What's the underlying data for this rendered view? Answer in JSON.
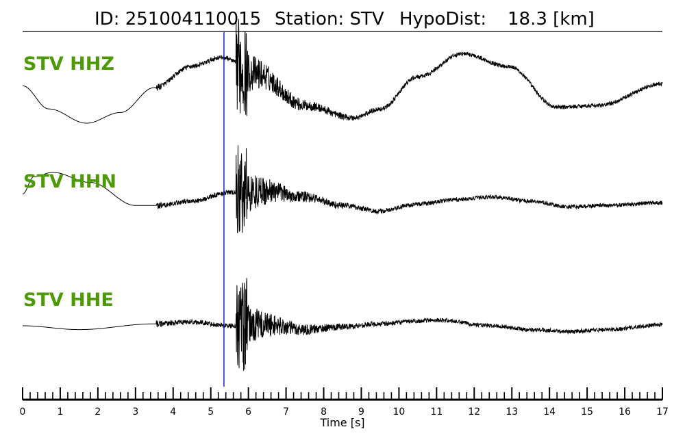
{
  "title": {
    "id_text": "ID: 251004110015",
    "station_text": "Station: STV",
    "hypodist_label": "HypoDist:",
    "hypodist_value": "18.3 [km]"
  },
  "chart_data": {
    "type": "line",
    "xlabel": "Time [s]",
    "xlim": [
      0,
      17
    ],
    "x_ticks": [
      "0",
      "1",
      "2",
      "3",
      "4",
      "5",
      "6",
      "7",
      "8",
      "9",
      "10",
      "11",
      "12",
      "13",
      "14",
      "15",
      "16",
      "17"
    ],
    "minor_tick_step": 0.2,
    "pick_time": 5.35,
    "colors": {
      "label": "#4d9a06",
      "trace": "#000000",
      "pick": "#1f1fd6",
      "axis": "#000000"
    },
    "series": [
      {
        "name": "STV HHZ",
        "onset_time": 3.55,
        "s_time": 5.72,
        "baseline": {
          "x": [
            0,
            0.7,
            1.7,
            2.6,
            3.5,
            4.5,
            5.3,
            6.2,
            7.5,
            8.8,
            9.5,
            10.5,
            11.7,
            12.9,
            14.2,
            15.3,
            17
          ],
          "y": [
            0.05,
            -0.6,
            -1.0,
            -0.7,
            0.0,
            0.6,
            0.85,
            0.4,
            -0.5,
            -0.85,
            -0.6,
            0.3,
            0.95,
            0.6,
            -0.55,
            -0.5,
            0.1
          ]
        }
      },
      {
        "name": "STV HHN",
        "onset_time": 3.55,
        "s_time": 5.72,
        "baseline": {
          "x": [
            0,
            0.3,
            0.8,
            1.8,
            3.0,
            3.6,
            4.5,
            5.5,
            6.5,
            7.5,
            8.5,
            9.5,
            10.5,
            11.5,
            12.5,
            13.5,
            14.5,
            15.5,
            17
          ],
          "y": [
            0.3,
            0.9,
            1.05,
            0.7,
            -0.1,
            -0.1,
            0.05,
            0.35,
            0.4,
            0.2,
            -0.1,
            -0.3,
            -0.05,
            0.1,
            0.2,
            0.05,
            -0.15,
            -0.1,
            0.0
          ]
        }
      },
      {
        "name": "STV HHE",
        "onset_time": 3.55,
        "s_time": 5.72,
        "baseline": {
          "x": [
            0,
            1.5,
            3.5,
            4.5,
            5.5,
            6.5,
            7.5,
            8.5,
            9.5,
            10.5,
            11.0,
            12.5,
            13.5,
            14.5,
            15.5,
            17
          ],
          "y": [
            0.0,
            -0.2,
            0.1,
            0.2,
            0.0,
            0.05,
            -0.2,
            -0.05,
            0.1,
            0.25,
            0.3,
            0.0,
            -0.2,
            -0.3,
            -0.2,
            0.05
          ]
        }
      }
    ]
  }
}
